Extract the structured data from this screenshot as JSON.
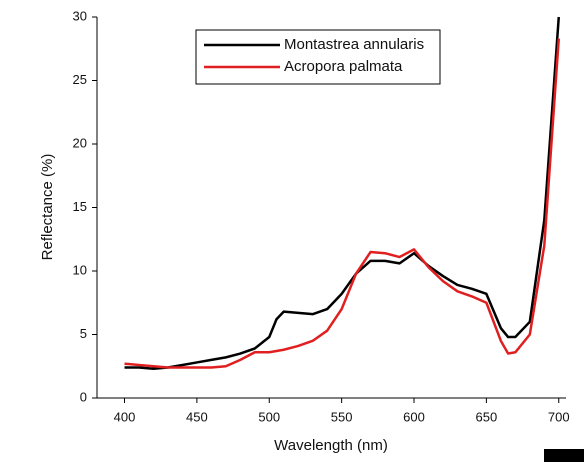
{
  "chart_data": {
    "type": "line",
    "x_label": "Wavelength (nm)",
    "y_label": "Reflectance (%)",
    "x": [
      400,
      410,
      420,
      430,
      440,
      450,
      460,
      470,
      480,
      490,
      500,
      505,
      510,
      520,
      530,
      540,
      550,
      560,
      570,
      580,
      590,
      600,
      610,
      620,
      630,
      640,
      650,
      660,
      665,
      670,
      680,
      690,
      700
    ],
    "series": [
      {
        "name": "Montastrea annularis",
        "color": "#000000",
        "values": [
          2.4,
          2.4,
          2.3,
          2.4,
          2.6,
          2.8,
          3.0,
          3.2,
          3.5,
          3.9,
          4.8,
          6.2,
          6.8,
          6.7,
          6.6,
          7.0,
          8.2,
          9.8,
          10.8,
          10.8,
          10.6,
          11.4,
          10.4,
          9.6,
          8.9,
          8.6,
          8.2,
          5.5,
          4.8,
          4.8,
          6.0,
          14,
          30
        ]
      },
      {
        "name": "Acropora palmata",
        "color": "#e02020",
        "values": [
          2.7,
          2.6,
          2.5,
          2.4,
          2.4,
          2.4,
          2.4,
          2.5,
          3.0,
          3.6,
          3.6,
          3.7,
          3.8,
          4.1,
          4.5,
          5.3,
          7.0,
          9.8,
          11.5,
          11.4,
          11.1,
          11.7,
          10.3,
          9.2,
          8.4,
          8.0,
          7.5,
          4.5,
          3.5,
          3.6,
          5.0,
          12,
          28.3
        ]
      }
    ],
    "xlim": [
      381,
      705
    ],
    "xticks": [
      400,
      450,
      500,
      550,
      600,
      650,
      700
    ],
    "ylim": [
      0,
      30
    ],
    "yticks": [
      0,
      5,
      10,
      15,
      20,
      25,
      30
    ],
    "legend": "top-center"
  }
}
